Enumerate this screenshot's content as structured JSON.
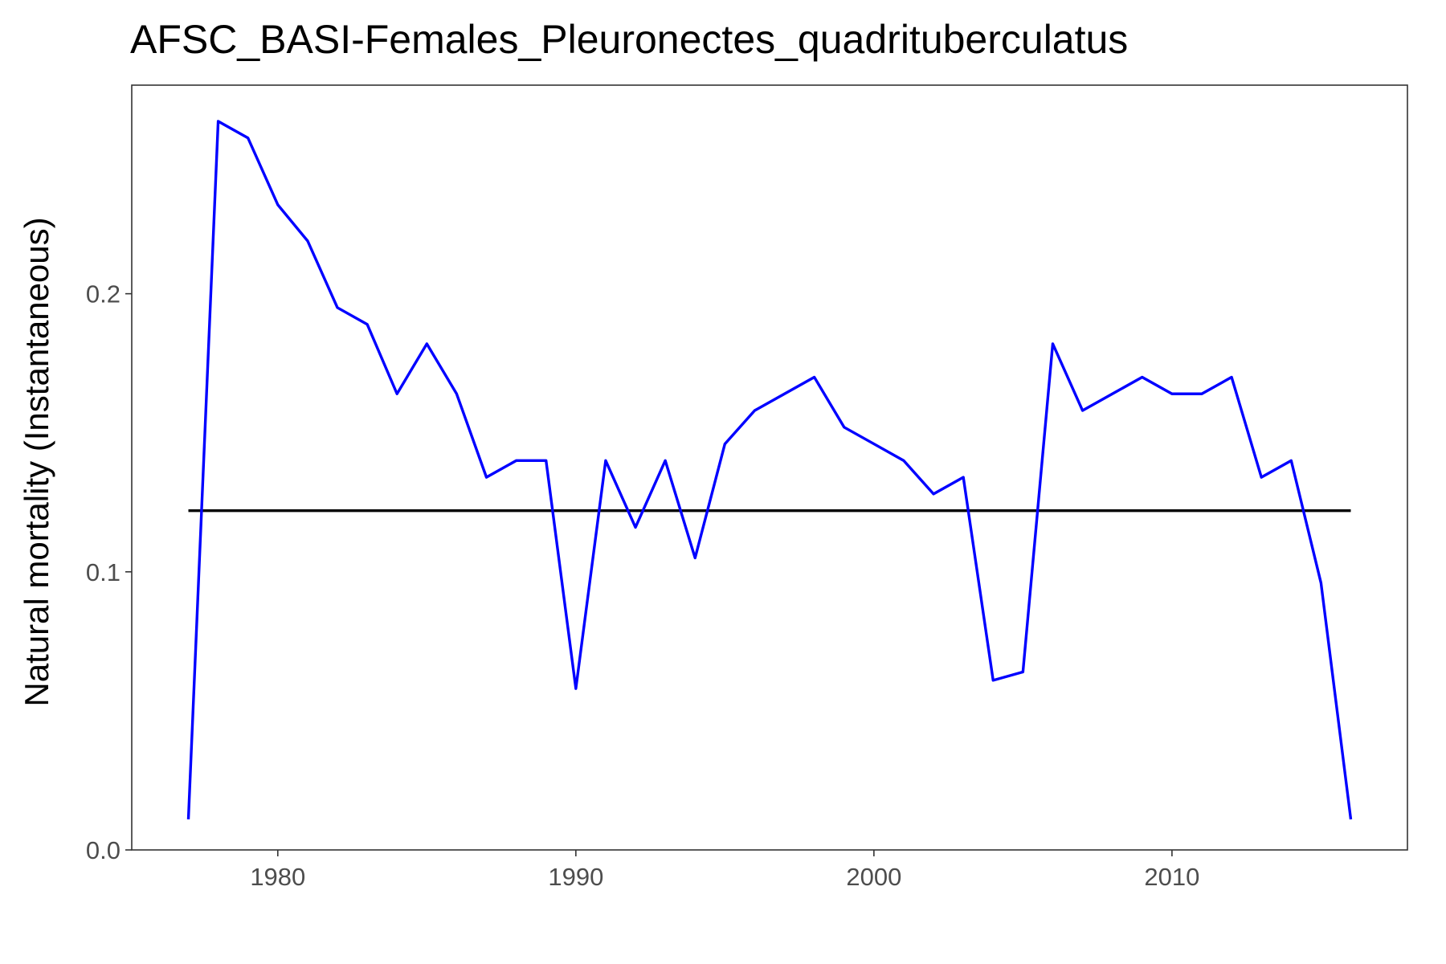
{
  "chart_data": {
    "type": "line",
    "title": "AFSC_BASI-Females_Pleuronectes_quadrituberculatus",
    "xlabel": "",
    "ylabel": "Natural mortality (Instantaneous)",
    "xlim": [
      1975.1,
      2017.9
    ],
    "ylim": [
      0.0,
      0.275
    ],
    "xticks": [
      1980,
      1990,
      2000,
      2010
    ],
    "xtick_labels": [
      "1980",
      "1990",
      "2000",
      "2010"
    ],
    "yticks": [
      0.0,
      0.1,
      0.2
    ],
    "ytick_labels": [
      "0.0",
      "0.1",
      "0.2"
    ],
    "grid": false,
    "legend": "none",
    "x": [
      1977,
      1978,
      1979,
      1980,
      1981,
      1982,
      1983,
      1984,
      1985,
      1986,
      1987,
      1988,
      1989,
      1990,
      1991,
      1992,
      1993,
      1994,
      1995,
      1996,
      1997,
      1998,
      1999,
      2000,
      2001,
      2002,
      2003,
      2004,
      2005,
      2006,
      2007,
      2008,
      2009,
      2010,
      2011,
      2012,
      2013,
      2014,
      2015,
      2016
    ],
    "series": [
      {
        "color": "#0000ff",
        "values": [
          0.011,
          0.262,
          0.256,
          0.232,
          0.219,
          0.195,
          0.189,
          0.164,
          0.182,
          0.164,
          0.134,
          0.14,
          0.14,
          0.058,
          0.14,
          0.116,
          0.14,
          0.105,
          0.146,
          0.158,
          0.164,
          0.17,
          0.152,
          0.146,
          0.14,
          0.128,
          0.134,
          0.061,
          0.064,
          0.182,
          0.158,
          0.164,
          0.17,
          0.164,
          0.164,
          0.17,
          0.134,
          0.14,
          0.096,
          0.011
        ]
      },
      {
        "color": "#000000",
        "values": [
          0.122,
          0.122,
          0.122,
          0.122,
          0.122,
          0.122,
          0.122,
          0.122,
          0.122,
          0.122,
          0.122,
          0.122,
          0.122,
          0.122,
          0.122,
          0.122,
          0.122,
          0.122,
          0.122,
          0.122,
          0.122,
          0.122,
          0.122,
          0.122,
          0.122,
          0.122,
          0.122,
          0.122,
          0.122,
          0.122,
          0.122,
          0.122,
          0.122,
          0.122,
          0.122,
          0.122,
          0.122,
          0.122,
          0.122,
          0.122
        ]
      }
    ],
    "colors": {
      "panel_border": "#333333",
      "tick_label": "#4d4d4d",
      "tick_mark": "#333333"
    }
  }
}
